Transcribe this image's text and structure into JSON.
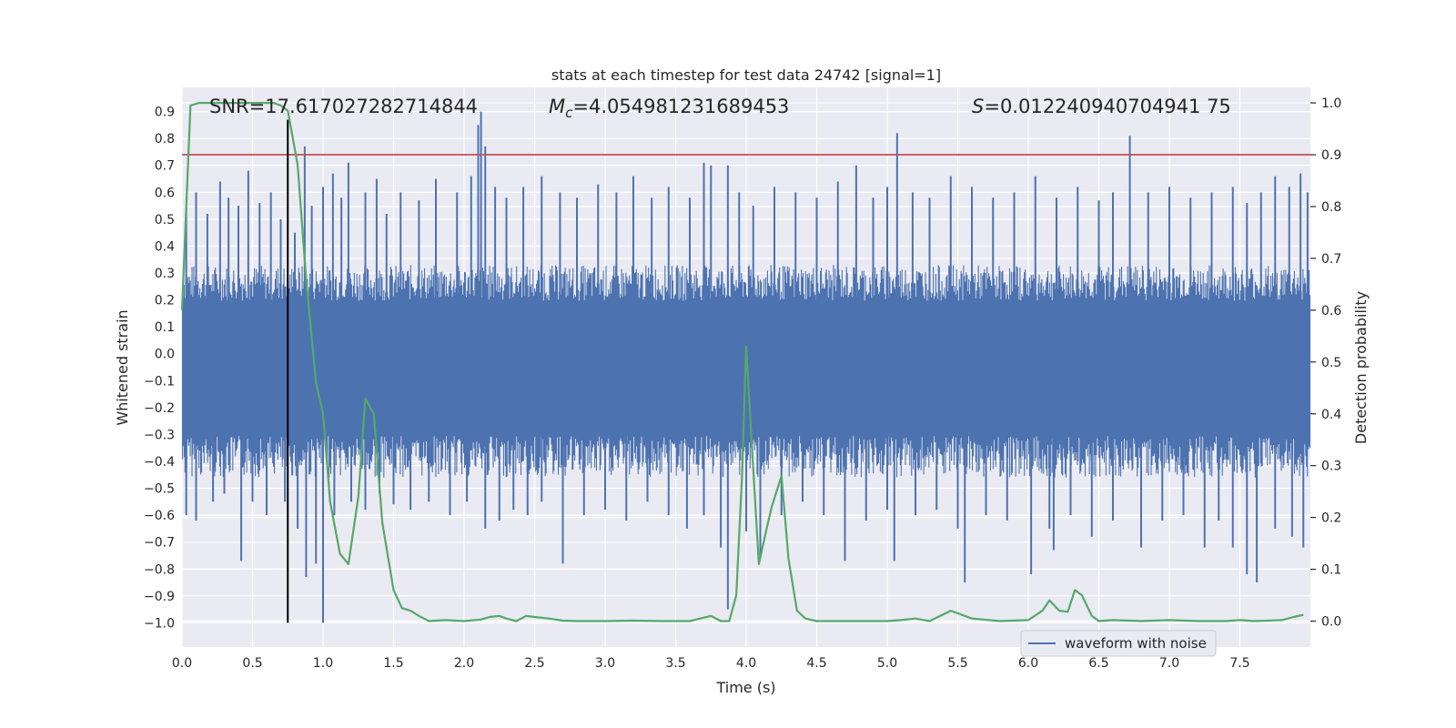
{
  "chart_data": {
    "type": "line",
    "title": "stats at each timestep for test data 24742 [signal=1]",
    "xlabel": "Time (s)",
    "ylabel_left": "Whitened strain",
    "ylabel_right": "Detection probability",
    "xlim": [
      0.0,
      8.0
    ],
    "ylim_left": [
      -1.09,
      0.99
    ],
    "ylim_right": [
      -0.05,
      1.03
    ],
    "x_ticks": [
      "0.0",
      "0.5",
      "1.0",
      "1.5",
      "2.0",
      "2.5",
      "3.0",
      "3.5",
      "4.0",
      "4.5",
      "5.0",
      "5.5",
      "6.0",
      "6.5",
      "7.0",
      "7.5"
    ],
    "y_left_ticks": [
      "0.9",
      "0.8",
      "0.7",
      "0.6",
      "0.5",
      "0.4",
      "0.3",
      "0.2",
      "0.1",
      "0.0",
      "−0.1",
      "−0.2",
      "−0.3",
      "−0.4",
      "−0.5",
      "−0.6",
      "−0.7",
      "−0.8",
      "−0.9",
      "−1.0"
    ],
    "y_right_ticks": [
      "1.0",
      "0.9",
      "0.8",
      "0.7",
      "0.6",
      "0.5",
      "0.4",
      "0.3",
      "0.2",
      "0.1",
      "0.0"
    ],
    "annotations": {
      "snr": "SNR=17.617027282714844",
      "mc_symbol": "M",
      "mc_sub": "c",
      "mc_value": "=4.054981231689453",
      "s_symbol": "S",
      "s_value": "=0.012240940704941 75"
    },
    "threshold_prob": 0.9,
    "marker_time": 0.75,
    "marker_strain_range": [
      -1.0,
      0.87
    ],
    "waveform": {
      "name": "waveform with noise",
      "band_low": -0.24,
      "band_high": 0.14,
      "envelope_low": -0.46,
      "envelope_high": 0.33,
      "spikes_up": [
        [
          0.03,
          0.55
        ],
        [
          0.1,
          0.6
        ],
        [
          0.18,
          0.52
        ],
        [
          0.27,
          0.64
        ],
        [
          0.33,
          0.58
        ],
        [
          0.4,
          0.55
        ],
        [
          0.47,
          0.68
        ],
        [
          0.55,
          0.56
        ],
        [
          0.63,
          0.6
        ],
        [
          0.7,
          0.5
        ],
        [
          0.8,
          0.45
        ],
        [
          0.87,
          0.77
        ],
        [
          0.92,
          0.55
        ],
        [
          1.0,
          0.62
        ],
        [
          1.07,
          0.67
        ],
        [
          1.13,
          0.58
        ],
        [
          1.18,
          0.71
        ],
        [
          1.3,
          0.6
        ],
        [
          1.38,
          0.65
        ],
        [
          1.45,
          0.52
        ],
        [
          1.55,
          0.6
        ],
        [
          1.68,
          0.57
        ],
        [
          1.8,
          0.65
        ],
        [
          1.95,
          0.6
        ],
        [
          2.05,
          0.66
        ],
        [
          2.1,
          0.85
        ],
        [
          2.12,
          0.9
        ],
        [
          2.15,
          0.77
        ],
        [
          2.22,
          0.62
        ],
        [
          2.3,
          0.58
        ],
        [
          2.42,
          0.62
        ],
        [
          2.55,
          0.66
        ],
        [
          2.68,
          0.6
        ],
        [
          2.8,
          0.58
        ],
        [
          2.95,
          0.63
        ],
        [
          3.08,
          0.6
        ],
        [
          3.2,
          0.66
        ],
        [
          3.33,
          0.58
        ],
        [
          3.45,
          0.62
        ],
        [
          3.6,
          0.58
        ],
        [
          3.7,
          0.71
        ],
        [
          3.75,
          0.7
        ],
        [
          3.87,
          0.7
        ],
        [
          3.95,
          0.6
        ],
        [
          4.05,
          0.55
        ],
        [
          4.2,
          0.62
        ],
        [
          4.35,
          0.6
        ],
        [
          4.5,
          0.58
        ],
        [
          4.65,
          0.64
        ],
        [
          4.78,
          0.7
        ],
        [
          4.9,
          0.58
        ],
        [
          5.0,
          0.62
        ],
        [
          5.07,
          0.82
        ],
        [
          5.18,
          0.6
        ],
        [
          5.3,
          0.58
        ],
        [
          5.45,
          0.66
        ],
        [
          5.6,
          0.62
        ],
        [
          5.75,
          0.58
        ],
        [
          5.9,
          0.6
        ],
        [
          6.05,
          0.66
        ],
        [
          6.2,
          0.58
        ],
        [
          6.35,
          0.62
        ],
        [
          6.5,
          0.57
        ],
        [
          6.6,
          0.6
        ],
        [
          6.72,
          0.81
        ],
        [
          6.85,
          0.6
        ],
        [
          7.0,
          0.62
        ],
        [
          7.15,
          0.58
        ],
        [
          7.3,
          0.6
        ],
        [
          7.45,
          0.62
        ],
        [
          7.55,
          0.56
        ],
        [
          7.65,
          0.6
        ],
        [
          7.75,
          0.66
        ],
        [
          7.85,
          0.62
        ],
        [
          7.93,
          0.67
        ],
        [
          7.98,
          0.6
        ]
      ],
      "spikes_down": [
        [
          0.03,
          -0.6
        ],
        [
          0.1,
          -0.62
        ],
        [
          0.22,
          -0.55
        ],
        [
          0.3,
          -0.52
        ],
        [
          0.42,
          -0.77
        ],
        [
          0.5,
          -0.55
        ],
        [
          0.6,
          -0.6
        ],
        [
          0.73,
          -0.55
        ],
        [
          0.82,
          -0.65
        ],
        [
          0.88,
          -0.83
        ],
        [
          0.95,
          -0.78
        ],
        [
          1.0,
          -1.0
        ],
        [
          1.08,
          -0.6
        ],
        [
          1.2,
          -0.55
        ],
        [
          1.3,
          -0.58
        ],
        [
          1.4,
          -0.52
        ],
        [
          1.5,
          -0.56
        ],
        [
          1.62,
          -0.58
        ],
        [
          1.75,
          -0.55
        ],
        [
          1.9,
          -0.6
        ],
        [
          2.02,
          -0.55
        ],
        [
          2.15,
          -0.65
        ],
        [
          2.25,
          -0.62
        ],
        [
          2.35,
          -0.58
        ],
        [
          2.45,
          -0.6
        ],
        [
          2.55,
          -0.55
        ],
        [
          2.7,
          -0.78
        ],
        [
          2.85,
          -0.6
        ],
        [
          3.0,
          -0.58
        ],
        [
          3.15,
          -0.62
        ],
        [
          3.3,
          -0.55
        ],
        [
          3.45,
          -0.6
        ],
        [
          3.58,
          -0.65
        ],
        [
          3.7,
          -0.6
        ],
        [
          3.82,
          -0.72
        ],
        [
          3.87,
          -0.95
        ],
        [
          4.0,
          -0.66
        ],
        [
          4.1,
          -0.75
        ],
        [
          4.25,
          -0.6
        ],
        [
          4.4,
          -0.55
        ],
        [
          4.55,
          -0.6
        ],
        [
          4.7,
          -0.77
        ],
        [
          4.85,
          -0.62
        ],
        [
          5.0,
          -0.58
        ],
        [
          5.05,
          -0.77
        ],
        [
          5.2,
          -0.6
        ],
        [
          5.35,
          -0.58
        ],
        [
          5.5,
          -0.65
        ],
        [
          5.55,
          -0.85
        ],
        [
          5.7,
          -0.6
        ],
        [
          5.85,
          -0.62
        ],
        [
          6.02,
          -0.82
        ],
        [
          6.15,
          -0.65
        ],
        [
          6.18,
          -0.73
        ],
        [
          6.3,
          -0.6
        ],
        [
          6.45,
          -0.68
        ],
        [
          6.6,
          -0.62
        ],
        [
          6.8,
          -0.72
        ],
        [
          6.95,
          -0.62
        ],
        [
          7.1,
          -0.6
        ],
        [
          7.25,
          -0.72
        ],
        [
          7.35,
          -0.62
        ],
        [
          7.45,
          -0.72
        ],
        [
          7.55,
          -0.82
        ],
        [
          7.62,
          -0.85
        ],
        [
          7.75,
          -0.65
        ],
        [
          7.87,
          -0.68
        ],
        [
          7.95,
          -0.72
        ]
      ]
    },
    "probability": {
      "x": [
        0.0,
        0.06,
        0.12,
        0.25,
        0.5,
        0.65,
        0.7,
        0.75,
        0.82,
        0.88,
        0.95,
        1.0,
        1.05,
        1.12,
        1.18,
        1.25,
        1.3,
        1.36,
        1.42,
        1.5,
        1.56,
        1.62,
        1.68,
        1.75,
        1.87,
        2.0,
        2.12,
        2.18,
        2.25,
        2.3,
        2.37,
        2.44,
        2.5,
        2.6,
        2.7,
        2.8,
        3.0,
        3.2,
        3.4,
        3.5,
        3.6,
        3.75,
        3.82,
        3.88,
        3.93,
        3.97,
        4.0,
        4.04,
        4.09,
        4.13,
        4.18,
        4.25,
        4.3,
        4.36,
        4.42,
        4.5,
        4.7,
        5.0,
        5.1,
        5.2,
        5.3,
        5.45,
        5.6,
        5.8,
        6.0,
        6.1,
        6.15,
        6.22,
        6.28,
        6.33,
        6.38,
        6.45,
        6.5,
        6.6,
        6.8,
        7.0,
        7.2,
        7.4,
        7.5,
        7.6,
        7.8,
        7.88,
        7.95
      ],
      "y": [
        0.6,
        0.995,
        1.0,
        1.0,
        1.0,
        1.0,
        0.995,
        0.985,
        0.88,
        0.66,
        0.46,
        0.4,
        0.23,
        0.13,
        0.11,
        0.24,
        0.43,
        0.4,
        0.19,
        0.06,
        0.025,
        0.02,
        0.01,
        0.0,
        0.002,
        0.0,
        0.003,
        0.008,
        0.01,
        0.005,
        0.0,
        0.01,
        0.008,
        0.005,
        0.001,
        0.0,
        0.0,
        0.001,
        0.0,
        0.0,
        0.0,
        0.01,
        0.0,
        0.0,
        0.05,
        0.28,
        0.53,
        0.34,
        0.11,
        0.16,
        0.22,
        0.28,
        0.12,
        0.02,
        0.005,
        0.0,
        0.0,
        0.0,
        0.002,
        0.005,
        0.0,
        0.02,
        0.005,
        0.0,
        0.002,
        0.02,
        0.04,
        0.02,
        0.018,
        0.06,
        0.05,
        0.01,
        0.0,
        0.002,
        0.0,
        0.002,
        0.0,
        0.0,
        0.002,
        0.0,
        0.002,
        0.008,
        0.012
      ]
    },
    "legend": {
      "position": "lower-right",
      "entries": [
        "waveform with noise"
      ]
    },
    "colors": {
      "background": "#eaeaf2",
      "grid": "#ffffff",
      "waveform": "#4c72b0",
      "probability": "#55a868",
      "threshold": "#c44e52",
      "marker": "#000000"
    }
  }
}
